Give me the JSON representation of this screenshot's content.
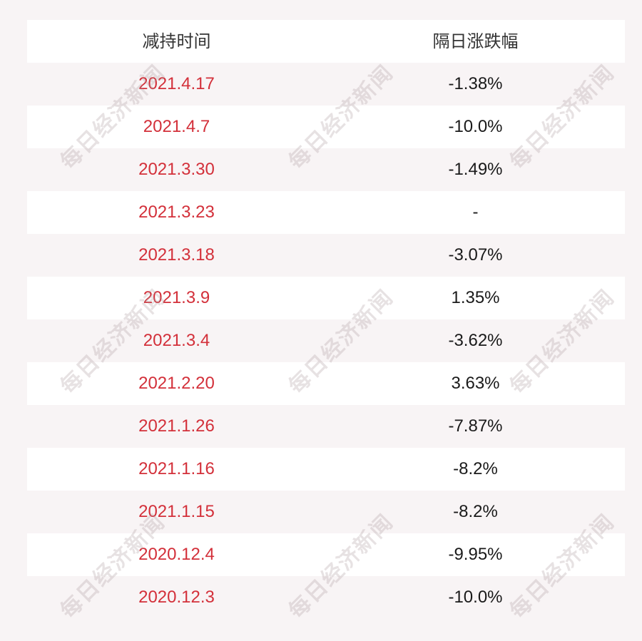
{
  "table": {
    "headers": [
      "减持时间",
      "隔日涨跌幅"
    ],
    "rows": [
      {
        "date": "2021.4.17",
        "change": "-1.38%"
      },
      {
        "date": "2021.4.7",
        "change": "-10.0%"
      },
      {
        "date": "2021.3.30",
        "change": "-1.49%"
      },
      {
        "date": "2021.3.23",
        "change": "-"
      },
      {
        "date": "2021.3.18",
        "change": "-3.07%"
      },
      {
        "date": "2021.3.9",
        "change": "1.35%"
      },
      {
        "date": "2021.3.4",
        "change": "-3.62%"
      },
      {
        "date": "2021.2.20",
        "change": "3.63%"
      },
      {
        "date": "2021.1.26",
        "change": "-7.87%"
      },
      {
        "date": "2021.1.16",
        "change": "-8.2%"
      },
      {
        "date": "2021.1.15",
        "change": "-8.2%"
      },
      {
        "date": "2020.12.4",
        "change": "-9.95%"
      },
      {
        "date": "2020.12.3",
        "change": "-10.0%"
      }
    ]
  },
  "watermark": {
    "text": "每日经济新闻"
  },
  "colors": {
    "date_text": "#d3303a",
    "value_text": "#1a1a1a",
    "row_white": "#ffffff",
    "row_tint": "#f8f4f5"
  }
}
